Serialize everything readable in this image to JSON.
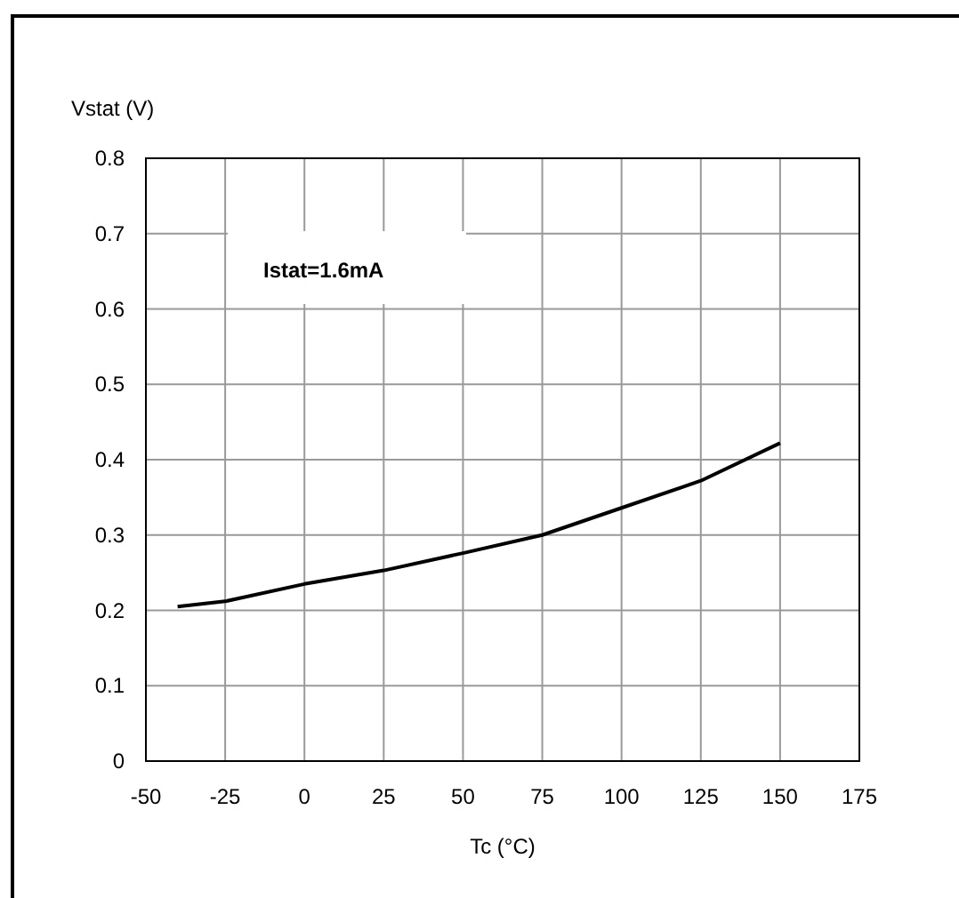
{
  "chart_data": {
    "type": "line",
    "xlabel": "Tc (°C)",
    "ylabel": "Vstat (V)",
    "x": [
      -40,
      -25,
      0,
      25,
      50,
      75,
      100,
      125,
      150
    ],
    "series": [
      {
        "color": "#000000",
        "values": [
          0.205,
          0.212,
          0.235,
          0.253,
          0.276,
          0.3,
          0.336,
          0.372,
          0.422
        ]
      }
    ],
    "xlim": [
      -50,
      175
    ],
    "xticks": [
      -50,
      -25,
      0,
      25,
      50,
      75,
      100,
      125,
      150,
      175
    ],
    "ylim": [
      0,
      0.8
    ],
    "yticks": [
      0,
      0.1,
      0.2,
      0.3,
      0.4,
      0.5,
      0.6,
      0.7,
      0.8
    ],
    "grid": true,
    "marker": "none",
    "line_style": "solid",
    "annotations": [
      "Istat=1.6mA"
    ]
  }
}
